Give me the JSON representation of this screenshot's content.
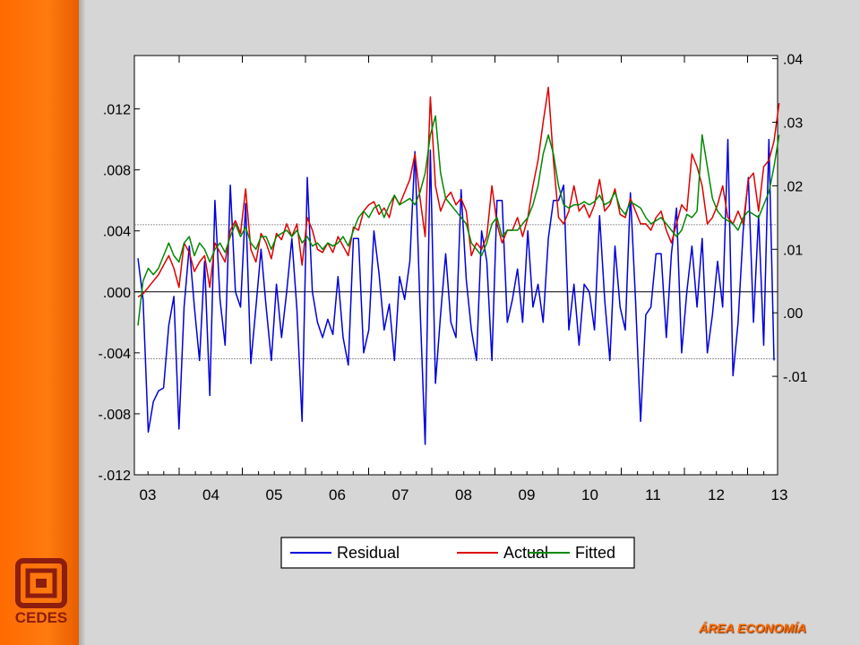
{
  "brand": {
    "name": "CEDES",
    "section_label": "ÁREA ECONOMÍA",
    "accent": "#ff6a00",
    "logo_color": "#8c1d0f"
  },
  "chart_data": {
    "type": "line",
    "x_tick_labels": [
      "03",
      "04",
      "05",
      "06",
      "07",
      "08",
      "09",
      "10",
      "11",
      "12",
      "13"
    ],
    "left_axis": {
      "ticks": [
        ".012",
        ".008",
        ".004",
        ".000",
        "-.004",
        "-.008",
        "-.012"
      ],
      "range": [
        -0.012,
        0.0155
      ]
    },
    "right_axis": {
      "ticks": [
        ".04",
        ".03",
        ".02",
        ".01",
        ".00",
        "-.01"
      ],
      "range": [
        -0.0255,
        0.0405
      ]
    },
    "reference_lines": [
      0.0,
      0.0044,
      -0.0044
    ],
    "legend": {
      "placement": "bottom-center",
      "entries": [
        "Residual",
        "Actual",
        "Fitted"
      ]
    },
    "series": [
      {
        "name": "Residual",
        "color": "#0000dd",
        "axis": "left",
        "values": [
          0.0022,
          -0.0005,
          -0.0092,
          -0.0072,
          -0.0065,
          -0.0063,
          -0.0022,
          -0.0003,
          -0.009,
          -0.001,
          0.003,
          -0.001,
          -0.0045,
          0.002,
          -0.0068,
          0.006,
          -0.0005,
          -0.0035,
          0.007,
          0.0,
          -0.001,
          0.0058,
          -0.0047,
          -0.001,
          0.0028,
          -0.001,
          -0.0045,
          0.0005,
          -0.003,
          0.0,
          0.0035,
          -0.0012,
          -0.0085,
          0.0075,
          0.0,
          -0.002,
          -0.003,
          -0.0018,
          -0.0028,
          0.001,
          -0.003,
          -0.0048,
          0.0035,
          0.0035,
          -0.004,
          -0.0025,
          0.004,
          0.0012,
          -0.0025,
          -0.0008,
          -0.0045,
          0.001,
          -0.0005,
          0.002,
          0.0092,
          -0.001,
          -0.01,
          0.0093,
          -0.006,
          -0.0015,
          0.0025,
          -0.002,
          -0.003,
          0.0067,
          0.0008,
          -0.0025,
          -0.0045,
          0.004,
          0.002,
          -0.0045,
          0.006,
          0.006,
          -0.002,
          -0.0005,
          0.0015,
          -0.002,
          0.004,
          -0.001,
          0.0005,
          -0.002,
          0.0035,
          0.006,
          0.006,
          0.007,
          -0.0025,
          0.0005,
          -0.0035,
          0.0005,
          0.0,
          -0.0025,
          0.005,
          -0.0005,
          -0.0045,
          0.003,
          -0.001,
          -0.0025,
          0.0065,
          -0.0005,
          -0.0085,
          -0.0015,
          -0.001,
          0.0025,
          0.0025,
          -0.003,
          0.0025,
          0.0055,
          -0.004,
          0.0,
          0.003,
          -0.001,
          0.0035,
          -0.004,
          -0.0015,
          0.002,
          -0.001,
          0.01,
          -0.0055,
          -0.002,
          0.004,
          0.0075,
          -0.002,
          0.005,
          -0.0035,
          0.01,
          -0.0045
        ]
      },
      {
        "name": "Actual",
        "color": "#dd0000",
        "axis": "right",
        "values": [
          0.0025,
          0.003,
          0.004,
          0.005,
          0.006,
          0.0075,
          0.009,
          0.007,
          0.004,
          0.011,
          0.0095,
          0.0065,
          0.008,
          0.009,
          0.004,
          0.011,
          0.0095,
          0.008,
          0.013,
          0.0145,
          0.0125,
          0.0195,
          0.01,
          0.008,
          0.0125,
          0.011,
          0.0085,
          0.0125,
          0.0115,
          0.014,
          0.012,
          0.014,
          0.0075,
          0.015,
          0.013,
          0.01,
          0.0095,
          0.011,
          0.0095,
          0.012,
          0.0105,
          0.009,
          0.0135,
          0.013,
          0.016,
          0.017,
          0.0175,
          0.0155,
          0.0165,
          0.015,
          0.0185,
          0.017,
          0.019,
          0.021,
          0.025,
          0.018,
          0.012,
          0.034,
          0.02,
          0.016,
          0.018,
          0.019,
          0.017,
          0.018,
          0.016,
          0.009,
          0.011,
          0.01,
          0.012,
          0.02,
          0.014,
          0.011,
          0.013,
          0.013,
          0.015,
          0.012,
          0.015,
          0.02,
          0.024,
          0.03,
          0.0355,
          0.024,
          0.015,
          0.014,
          0.016,
          0.02,
          0.016,
          0.017,
          0.015,
          0.017,
          0.021,
          0.016,
          0.017,
          0.0195,
          0.0155,
          0.015,
          0.018,
          0.016,
          0.014,
          0.014,
          0.013,
          0.015,
          0.016,
          0.013,
          0.011,
          0.014,
          0.017,
          0.016,
          0.025,
          0.023,
          0.02,
          0.014,
          0.015,
          0.017,
          0.02,
          0.015,
          0.014,
          0.016,
          0.014,
          0.021,
          0.022,
          0.016,
          0.023,
          0.024,
          0.027,
          0.033
        ]
      },
      {
        "name": "Fitted",
        "color": "#008800",
        "axis": "right",
        "values": [
          -0.002,
          0.005,
          0.007,
          0.006,
          0.007,
          0.009,
          0.011,
          0.009,
          0.008,
          0.011,
          0.012,
          0.009,
          0.011,
          0.01,
          0.008,
          0.01,
          0.011,
          0.0095,
          0.012,
          0.014,
          0.012,
          0.0135,
          0.011,
          0.01,
          0.012,
          0.012,
          0.01,
          0.012,
          0.0125,
          0.013,
          0.012,
          0.013,
          0.011,
          0.012,
          0.0105,
          0.011,
          0.01,
          0.011,
          0.0105,
          0.011,
          0.012,
          0.0105,
          0.013,
          0.015,
          0.016,
          0.015,
          0.0165,
          0.017,
          0.015,
          0.017,
          0.0185,
          0.017,
          0.0175,
          0.018,
          0.017,
          0.019,
          0.022,
          0.028,
          0.031,
          0.022,
          0.018,
          0.017,
          0.016,
          0.015,
          0.014,
          0.011,
          0.01,
          0.009,
          0.011,
          0.014,
          0.015,
          0.012,
          0.013,
          0.013,
          0.013,
          0.014,
          0.015,
          0.017,
          0.02,
          0.025,
          0.028,
          0.025,
          0.02,
          0.017,
          0.0165,
          0.017,
          0.017,
          0.0175,
          0.017,
          0.0175,
          0.0185,
          0.017,
          0.0175,
          0.019,
          0.0165,
          0.0155,
          0.0175,
          0.017,
          0.0165,
          0.015,
          0.014,
          0.0145,
          0.015,
          0.014,
          0.013,
          0.012,
          0.013,
          0.0155,
          0.015,
          0.016,
          0.028,
          0.023,
          0.018,
          0.016,
          0.015,
          0.0145,
          0.014,
          0.013,
          0.015,
          0.016,
          0.0155,
          0.015,
          0.017,
          0.019,
          0.023,
          0.028
        ]
      }
    ]
  }
}
